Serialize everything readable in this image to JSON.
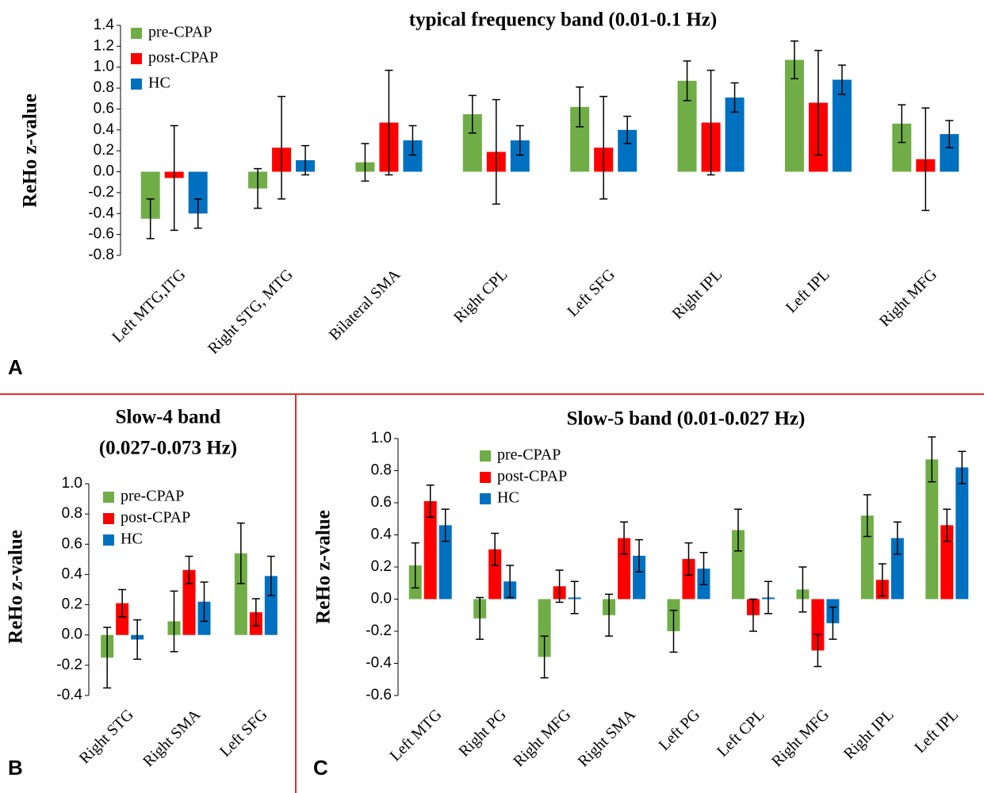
{
  "chart_data": [
    {
      "type": "bar",
      "panel": "A",
      "title": "typical frequency band (0.01-0.1 Hz)",
      "ylabel": "ReHo z-value",
      "categories": [
        "Left MTG,ITG",
        "Right STG, MTG",
        "Bilateral SMA",
        "Right CPL",
        "Left SFG",
        "Right IPL",
        "Left IPL",
        "Right MFG"
      ],
      "series": [
        {
          "name": "pre-CPAP",
          "color": "#70ad47",
          "values": [
            -0.45,
            -0.16,
            0.09,
            0.55,
            0.62,
            0.87,
            1.07,
            0.46
          ],
          "errors": [
            0.19,
            0.19,
            0.18,
            0.18,
            0.19,
            0.19,
            0.18,
            0.18
          ]
        },
        {
          "name": "post-CPAP",
          "color": "#ff0000",
          "values": [
            -0.06,
            0.23,
            0.47,
            0.19,
            0.23,
            0.47,
            0.66,
            0.12
          ],
          "errors": [
            0.5,
            0.49,
            0.5,
            0.5,
            0.49,
            0.5,
            0.5,
            0.49
          ]
        },
        {
          "name": "HC",
          "color": "#0070c0",
          "values": [
            -0.4,
            0.11,
            0.3,
            0.3,
            0.4,
            0.71,
            0.88,
            0.36
          ],
          "errors": [
            0.14,
            0.14,
            0.14,
            0.14,
            0.13,
            0.14,
            0.14,
            0.13
          ]
        }
      ],
      "ylim": [
        -0.8,
        1.4
      ],
      "yticks": [
        -0.8,
        -0.6,
        -0.4,
        -0.2,
        {
          "value": 0,
          "label": "0.0"
        },
        0.2,
        0.4,
        0.6,
        0.8,
        {
          "value": 1,
          "label": "1.0"
        },
        1.2,
        1.4
      ]
    },
    {
      "type": "bar",
      "panel": "B",
      "title": [
        "Slow-4 band",
        "(0.027-0.073 Hz)"
      ],
      "ylabel": "ReHo z-value",
      "categories": [
        "Right STG",
        "Right SMA",
        "Left SFG"
      ],
      "series": [
        {
          "name": "pre-CPAP",
          "color": "#70ad47",
          "values": [
            -0.15,
            0.09,
            0.54
          ],
          "errors": [
            0.2,
            0.2,
            0.2
          ]
        },
        {
          "name": "post-CPAP",
          "color": "#ff0000",
          "values": [
            0.21,
            0.43,
            0.15
          ],
          "errors": [
            0.09,
            0.09,
            0.09
          ]
        },
        {
          "name": "HC",
          "color": "#0070c0",
          "values": [
            -0.03,
            0.22,
            0.39
          ],
          "errors": [
            0.13,
            0.13,
            0.13
          ]
        }
      ],
      "ylim": [
        -0.4,
        1.0
      ],
      "yticks": [
        -0.4,
        -0.2,
        {
          "value": 0,
          "label": "0.0"
        },
        0.2,
        0.4,
        0.6,
        0.8,
        {
          "value": 1,
          "label": "1.0"
        }
      ]
    },
    {
      "type": "bar",
      "panel": "C",
      "title": "Slow-5 band (0.01-0.027 Hz)",
      "ylabel": "ReHo z-value",
      "categories": [
        "Left MTG",
        "Right PG",
        "Right MFG",
        "Right SMA",
        "Left PG",
        "Left CPL",
        "Right MFG",
        "Right IPL",
        "Left IPL"
      ],
      "series": [
        {
          "name": "pre-CPAP",
          "color": "#70ad47",
          "values": [
            0.21,
            -0.12,
            -0.36,
            -0.1,
            -0.2,
            0.43,
            0.06,
            0.52,
            0.87
          ],
          "errors": [
            0.14,
            0.13,
            0.13,
            0.13,
            0.13,
            0.13,
            0.14,
            0.13,
            0.14
          ]
        },
        {
          "name": "post-CPAP",
          "color": "#ff0000",
          "values": [
            0.61,
            0.31,
            0.08,
            0.38,
            0.25,
            -0.1,
            -0.32,
            0.12,
            0.46
          ],
          "errors": [
            0.1,
            0.1,
            0.1,
            0.1,
            0.1,
            0.1,
            0.1,
            0.1,
            0.1
          ]
        },
        {
          "name": "HC",
          "color": "#0070c0",
          "values": [
            0.46,
            0.11,
            0.01,
            0.27,
            0.19,
            0.01,
            -0.15,
            0.38,
            0.82
          ],
          "errors": [
            0.1,
            0.1,
            0.1,
            0.1,
            0.1,
            0.1,
            0.1,
            0.1,
            0.1
          ]
        }
      ],
      "ylim": [
        -0.6,
        1.0
      ],
      "yticks": [
        -0.6,
        -0.4,
        -0.2,
        {
          "value": 0,
          "label": "0.0"
        },
        0.2,
        0.4,
        0.6,
        0.8,
        {
          "value": 1,
          "label": "1.0"
        }
      ]
    }
  ]
}
